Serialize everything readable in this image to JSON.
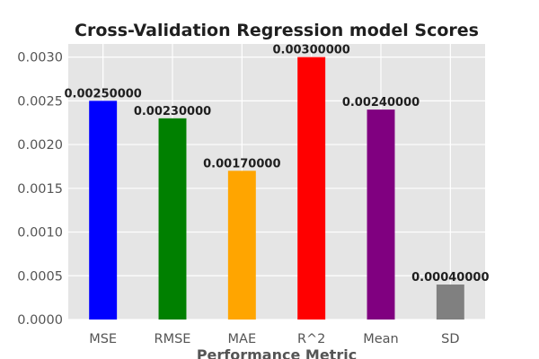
{
  "chart_data": {
    "type": "bar",
    "title": "Cross-Validation Regression model Scores",
    "xlabel": "Performance Metric",
    "ylabel": "",
    "ylim": [
      0,
      0.00315
    ],
    "grid": true,
    "categories": [
      "MSE",
      "RMSE",
      "MAE",
      "R^2",
      "Mean",
      "SD"
    ],
    "values": [
      0.0025,
      0.0023,
      0.0017,
      0.003,
      0.0024,
      0.0004
    ],
    "value_labels": [
      "0.00250000",
      "0.00230000",
      "0.00170000",
      "0.00300000",
      "0.00240000",
      "0.00040000"
    ],
    "colors": [
      "#0000ff",
      "#008000",
      "#ffa500",
      "#ff0000",
      "#800080",
      "#808080"
    ],
    "y_ticks": [
      0,
      0.0005,
      0.001,
      0.0015,
      0.002,
      0.0025,
      0.003
    ],
    "y_tick_labels": [
      "0.0000",
      "0.0005",
      "0.0010",
      "0.0015",
      "0.0020",
      "0.0025",
      "0.0030"
    ],
    "background_color": "#e5e5e5",
    "grid_color": "#ffffff"
  }
}
